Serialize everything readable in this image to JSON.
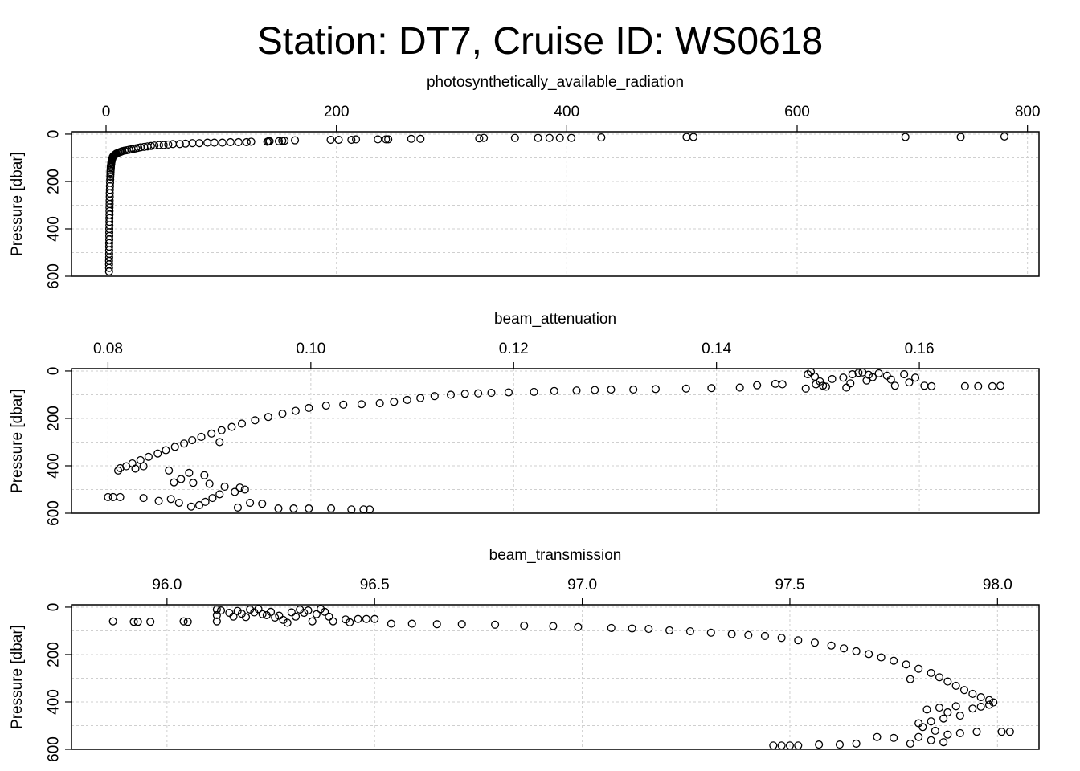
{
  "title": "Station: DT7, Cruise ID: WS0618",
  "chart_data": [
    {
      "type": "scatter",
      "xlabel": "photosynthetically_available_radiation",
      "ylabel": "Pressure [dbar]",
      "xlim": [
        -30,
        810
      ],
      "ylim": [
        600,
        -10
      ],
      "y_reversed": true,
      "x_axis_position": "top",
      "grid": true,
      "xticks": [
        0,
        200,
        400,
        600,
        800
      ],
      "yticks": [
        0,
        200,
        400,
        600
      ],
      "points": [
        [
          780,
          10
        ],
        [
          742,
          12
        ],
        [
          694,
          12
        ],
        [
          510,
          12
        ],
        [
          504,
          12
        ],
        [
          430,
          14
        ],
        [
          404,
          16
        ],
        [
          394,
          16
        ],
        [
          385,
          16
        ],
        [
          375,
          16
        ],
        [
          355,
          16
        ],
        [
          328,
          16
        ],
        [
          324,
          18
        ],
        [
          273,
          20
        ],
        [
          265,
          20
        ],
        [
          245,
          22
        ],
        [
          243,
          22
        ],
        [
          236,
          22
        ],
        [
          217,
          22
        ],
        [
          213,
          24
        ],
        [
          202,
          24
        ],
        [
          195,
          24
        ],
        [
          164,
          26
        ],
        [
          155,
          28
        ],
        [
          153,
          28
        ],
        [
          150,
          30
        ],
        [
          142,
          30
        ],
        [
          141,
          30
        ],
        [
          140,
          32
        ],
        [
          126,
          32
        ],
        [
          122,
          34
        ],
        [
          115,
          34
        ],
        [
          108,
          34
        ],
        [
          101,
          36
        ],
        [
          94,
          36
        ],
        [
          88,
          36
        ],
        [
          81,
          38
        ],
        [
          75,
          38
        ],
        [
          69,
          40
        ],
        [
          64,
          42
        ],
        [
          58,
          42
        ],
        [
          54,
          44
        ],
        [
          50,
          46
        ],
        [
          46,
          46
        ],
        [
          42,
          48
        ],
        [
          39,
          50
        ],
        [
          36,
          52
        ],
        [
          33,
          54
        ],
        [
          30,
          56
        ],
        [
          28,
          58
        ],
        [
          26,
          60
        ],
        [
          24,
          62
        ],
        [
          22,
          64
        ],
        [
          20,
          66
        ],
        [
          18,
          68
        ],
        [
          16,
          70
        ],
        [
          14,
          72
        ],
        [
          13,
          74
        ],
        [
          12,
          76
        ],
        [
          11,
          78
        ],
        [
          10,
          80
        ],
        [
          9,
          82
        ],
        [
          8.5,
          84
        ],
        [
          8,
          86
        ],
        [
          7.5,
          88
        ],
        [
          7,
          90
        ],
        [
          6.5,
          92
        ],
        [
          6,
          95
        ],
        [
          5.8,
          98
        ],
        [
          5.5,
          102
        ],
        [
          5.2,
          106
        ],
        [
          5,
          110
        ],
        [
          4.8,
          115
        ],
        [
          4.6,
          120
        ],
        [
          4.5,
          126
        ],
        [
          4.3,
          132
        ],
        [
          4.2,
          138
        ],
        [
          4.1,
          145
        ],
        [
          4,
          152
        ],
        [
          3.9,
          160
        ],
        [
          3.8,
          170
        ],
        [
          3.7,
          180
        ],
        [
          3.6,
          192
        ],
        [
          3.5,
          205
        ],
        [
          3.4,
          220
        ],
        [
          3.3,
          235
        ],
        [
          3.2,
          250
        ],
        [
          3.2,
          265
        ],
        [
          3.1,
          280
        ],
        [
          3.1,
          295
        ],
        [
          3,
          310
        ],
        [
          3,
          325
        ],
        [
          3,
          340
        ],
        [
          2.9,
          355
        ],
        [
          2.9,
          370
        ],
        [
          2.9,
          385
        ],
        [
          2.8,
          400
        ],
        [
          2.8,
          415
        ],
        [
          2.8,
          430
        ],
        [
          2.8,
          445
        ],
        [
          2.7,
          460
        ],
        [
          2.7,
          475
        ],
        [
          2.7,
          490
        ],
        [
          2.7,
          505
        ],
        [
          2.7,
          520
        ],
        [
          2.6,
          535
        ],
        [
          2.6,
          550
        ],
        [
          2.6,
          565
        ],
        [
          2.6,
          580
        ]
      ]
    },
    {
      "type": "scatter",
      "xlabel": "beam_attenuation",
      "ylabel": "Pressure [dbar]",
      "xlim": [
        0.0764,
        0.1718
      ],
      "ylim": [
        600,
        -10
      ],
      "y_reversed": true,
      "x_axis_position": "top",
      "grid": true,
      "xticks": [
        0.08,
        0.1,
        0.12,
        0.14,
        0.16
      ],
      "xtick_labels": [
        "0.08",
        "0.10",
        "0.12",
        "0.14",
        "0.16"
      ],
      "yticks": [
        0,
        200,
        400,
        600
      ],
      "points": [
        [
          0.149,
          14
        ],
        [
          0.1493,
          4
        ],
        [
          0.1497,
          24
        ],
        [
          0.1502,
          44
        ],
        [
          0.1508,
          66
        ],
        [
          0.1525,
          28
        ],
        [
          0.1534,
          14
        ],
        [
          0.154,
          8
        ],
        [
          0.1548,
          40
        ],
        [
          0.1554,
          26
        ],
        [
          0.156,
          10
        ],
        [
          0.1568,
          20
        ],
        [
          0.1572,
          36
        ],
        [
          0.1585,
          14
        ],
        [
          0.159,
          48
        ],
        [
          0.1532,
          52
        ],
        [
          0.1514,
          34
        ],
        [
          0.1505,
          62
        ],
        [
          0.1498,
          56
        ],
        [
          0.1488,
          74
        ],
        [
          0.1544,
          6
        ],
        [
          0.1576,
          62
        ],
        [
          0.1596,
          28
        ],
        [
          0.155,
          16
        ],
        [
          0.1528,
          70
        ],
        [
          0.1658,
          64
        ],
        [
          0.1672,
          64
        ],
        [
          0.168,
          62
        ],
        [
          0.1645,
          64
        ],
        [
          0.1612,
          64
        ],
        [
          0.1605,
          62
        ],
        [
          0.1465,
          56
        ],
        [
          0.1458,
          54
        ],
        [
          0.144,
          60
        ],
        [
          0.1423,
          70
        ],
        [
          0.1395,
          72
        ],
        [
          0.137,
          74
        ],
        [
          0.134,
          76
        ],
        [
          0.1318,
          78
        ],
        [
          0.1296,
          78
        ],
        [
          0.128,
          80
        ],
        [
          0.1262,
          82
        ],
        [
          0.124,
          84
        ],
        [
          0.122,
          88
        ],
        [
          0.1195,
          90
        ],
        [
          0.1178,
          92
        ],
        [
          0.1165,
          94
        ],
        [
          0.1152,
          96
        ],
        [
          0.1138,
          100
        ],
        [
          0.1122,
          106
        ],
        [
          0.1108,
          114
        ],
        [
          0.1095,
          122
        ],
        [
          0.1082,
          130
        ],
        [
          0.1068,
          136
        ],
        [
          0.105,
          140
        ],
        [
          0.1032,
          142
        ],
        [
          0.1015,
          146
        ],
        [
          0.0998,
          156
        ],
        [
          0.0985,
          168
        ],
        [
          0.0972,
          180
        ],
        [
          0.0958,
          194
        ],
        [
          0.0945,
          208
        ],
        [
          0.0932,
          222
        ],
        [
          0.0922,
          236
        ],
        [
          0.0912,
          250
        ],
        [
          0.0902,
          264
        ],
        [
          0.0892,
          278
        ],
        [
          0.0883,
          292
        ],
        [
          0.0875,
          306
        ],
        [
          0.0866,
          320
        ],
        [
          0.0857,
          334
        ],
        [
          0.0849,
          348
        ],
        [
          0.084,
          362
        ],
        [
          0.0832,
          376
        ],
        [
          0.0824,
          390
        ],
        [
          0.0818,
          402
        ],
        [
          0.0812,
          410
        ],
        [
          0.081,
          420
        ],
        [
          0.0827,
          412
        ],
        [
          0.0835,
          402
        ],
        [
          0.091,
          300
        ],
        [
          0.086,
          420
        ],
        [
          0.088,
          430
        ],
        [
          0.0895,
          440
        ],
        [
          0.0872,
          456
        ],
        [
          0.0865,
          470
        ],
        [
          0.0884,
          472
        ],
        [
          0.09,
          476
        ],
        [
          0.0915,
          488
        ],
        [
          0.093,
          492
        ],
        [
          0.0935,
          500
        ],
        [
          0.0925,
          510
        ],
        [
          0.091,
          520
        ],
        [
          0.0903,
          536
        ],
        [
          0.0896,
          552
        ],
        [
          0.089,
          566
        ],
        [
          0.0882,
          572
        ],
        [
          0.087,
          556
        ],
        [
          0.0862,
          540
        ],
        [
          0.085,
          548
        ],
        [
          0.0835,
          536
        ],
        [
          0.0812,
          532
        ],
        [
          0.08,
          532
        ],
        [
          0.0805,
          532
        ],
        [
          0.094,
          556
        ],
        [
          0.0928,
          576
        ],
        [
          0.0952,
          560
        ],
        [
          0.0968,
          580
        ],
        [
          0.0983,
          580
        ],
        [
          0.0998,
          580
        ],
        [
          0.102,
          580
        ],
        [
          0.104,
          584
        ],
        [
          0.1052,
          584
        ],
        [
          0.1058,
          584
        ]
      ]
    },
    {
      "type": "scatter",
      "xlabel": "beam_transmission",
      "ylabel": "Pressure [dbar]",
      "xlim": [
        95.77,
        98.1
      ],
      "ylim": [
        600,
        -10
      ],
      "y_reversed": true,
      "x_axis_position": "top",
      "grid": true,
      "xticks": [
        96.0,
        96.5,
        97.0,
        97.5,
        98.0
      ],
      "xtick_labels": [
        "96.0",
        "96.5",
        "97.0",
        "97.5",
        "98.0"
      ],
      "yticks": [
        0,
        200,
        400,
        600
      ],
      "points": [
        [
          95.87,
          60
        ],
        [
          95.92,
          62
        ],
        [
          95.93,
          62
        ],
        [
          95.96,
          62
        ],
        [
          96.04,
          60
        ],
        [
          96.05,
          62
        ],
        [
          96.12,
          34
        ],
        [
          96.12,
          60
        ],
        [
          96.12,
          10
        ],
        [
          96.13,
          14
        ],
        [
          96.15,
          24
        ],
        [
          96.16,
          40
        ],
        [
          96.17,
          16
        ],
        [
          96.18,
          28
        ],
        [
          96.19,
          42
        ],
        [
          96.2,
          10
        ],
        [
          96.21,
          22
        ],
        [
          96.22,
          8
        ],
        [
          96.23,
          30
        ],
        [
          96.24,
          34
        ],
        [
          96.25,
          20
        ],
        [
          96.26,
          44
        ],
        [
          96.27,
          36
        ],
        [
          96.28,
          54
        ],
        [
          96.29,
          66
        ],
        [
          96.3,
          22
        ],
        [
          96.31,
          40
        ],
        [
          96.32,
          10
        ],
        [
          96.33,
          24
        ],
        [
          96.34,
          14
        ],
        [
          96.35,
          60
        ],
        [
          96.36,
          30
        ],
        [
          96.37,
          8
        ],
        [
          96.38,
          20
        ],
        [
          96.39,
          40
        ],
        [
          96.4,
          60
        ],
        [
          96.43,
          52
        ],
        [
          96.44,
          64
        ],
        [
          96.46,
          50
        ],
        [
          96.48,
          50
        ],
        [
          96.5,
          50
        ],
        [
          96.54,
          70
        ],
        [
          96.59,
          70
        ],
        [
          96.65,
          72
        ],
        [
          96.71,
          72
        ],
        [
          96.79,
          74
        ],
        [
          96.86,
          78
        ],
        [
          96.93,
          80
        ],
        [
          96.99,
          84
        ],
        [
          97.07,
          88
        ],
        [
          97.12,
          90
        ],
        [
          97.16,
          92
        ],
        [
          97.21,
          98
        ],
        [
          97.26,
          102
        ],
        [
          97.31,
          108
        ],
        [
          97.36,
          114
        ],
        [
          97.4,
          118
        ],
        [
          97.44,
          122
        ],
        [
          97.48,
          130
        ],
        [
          97.52,
          140
        ],
        [
          97.56,
          150
        ],
        [
          97.6,
          162
        ],
        [
          97.63,
          174
        ],
        [
          97.66,
          186
        ],
        [
          97.69,
          198
        ],
        [
          97.72,
          212
        ],
        [
          97.75,
          226
        ],
        [
          97.78,
          242
        ],
        [
          97.81,
          260
        ],
        [
          97.84,
          278
        ],
        [
          97.86,
          296
        ],
        [
          97.88,
          314
        ],
        [
          97.9,
          332
        ],
        [
          97.92,
          350
        ],
        [
          97.94,
          366
        ],
        [
          97.96,
          380
        ],
        [
          97.98,
          392
        ],
        [
          97.99,
          402
        ],
        [
          97.98,
          412
        ],
        [
          97.96,
          420
        ],
        [
          97.94,
          428
        ],
        [
          97.9,
          418
        ],
        [
          97.86,
          424
        ],
        [
          97.79,
          304
        ],
        [
          97.83,
          432
        ],
        [
          97.88,
          444
        ],
        [
          97.91,
          458
        ],
        [
          97.87,
          470
        ],
        [
          97.84,
          482
        ],
        [
          97.81,
          490
        ],
        [
          97.82,
          506
        ],
        [
          97.85,
          522
        ],
        [
          97.88,
          538
        ],
        [
          97.91,
          532
        ],
        [
          97.95,
          526
        ],
        [
          98.01,
          526
        ],
        [
          98.03,
          526
        ],
        [
          97.81,
          548
        ],
        [
          97.84,
          562
        ],
        [
          97.87,
          570
        ],
        [
          97.79,
          576
        ],
        [
          97.75,
          552
        ],
        [
          97.71,
          548
        ],
        [
          97.66,
          576
        ],
        [
          97.62,
          580
        ],
        [
          97.57,
          580
        ],
        [
          97.48,
          584
        ],
        [
          97.5,
          584
        ],
        [
          97.46,
          584
        ],
        [
          97.52,
          584
        ]
      ]
    }
  ]
}
